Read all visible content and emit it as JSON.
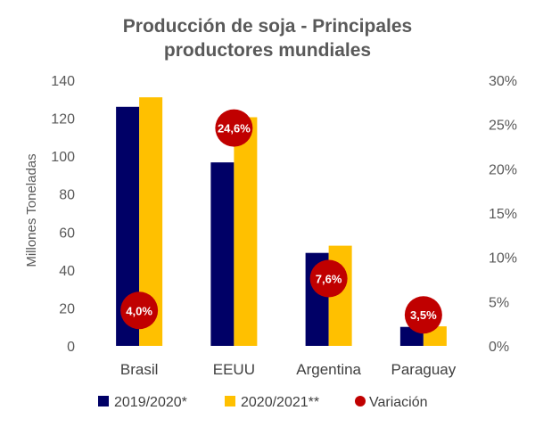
{
  "chart_data": {
    "type": "bar",
    "title_lines": [
      "Producción de soja - Principales",
      "productores mundiales"
    ],
    "ylabel": "Millones Toneladas",
    "categories": [
      "Brasil",
      "EEUU",
      "Argentina",
      "Paraguay"
    ],
    "ylim": [
      0,
      140
    ],
    "y_ticks": [
      "0",
      "20",
      "40",
      "60",
      "80",
      "100",
      "120",
      "140"
    ],
    "y2lim": [
      0,
      30
    ],
    "y2_ticks": [
      "0%",
      "5%",
      "10%",
      "15%",
      "20%",
      "25%",
      "30%"
    ],
    "series": [
      {
        "name": "2019/2020*",
        "values": [
          126,
          96.7,
          49,
          10
        ],
        "color": "#000066"
      },
      {
        "name": "2020/2021**",
        "values": [
          131,
          120.5,
          52.8,
          10.3
        ],
        "color": "#FFC000"
      }
    ],
    "variation": {
      "name": "Variación",
      "axis": "secondary",
      "values": [
        4.0,
        24.6,
        7.6,
        3.5
      ],
      "labels": [
        "4,0%",
        "24,6%",
        "7,6%",
        "3,5%"
      ],
      "color": "#C00000"
    },
    "legend_position": "bottom",
    "grid": false
  }
}
